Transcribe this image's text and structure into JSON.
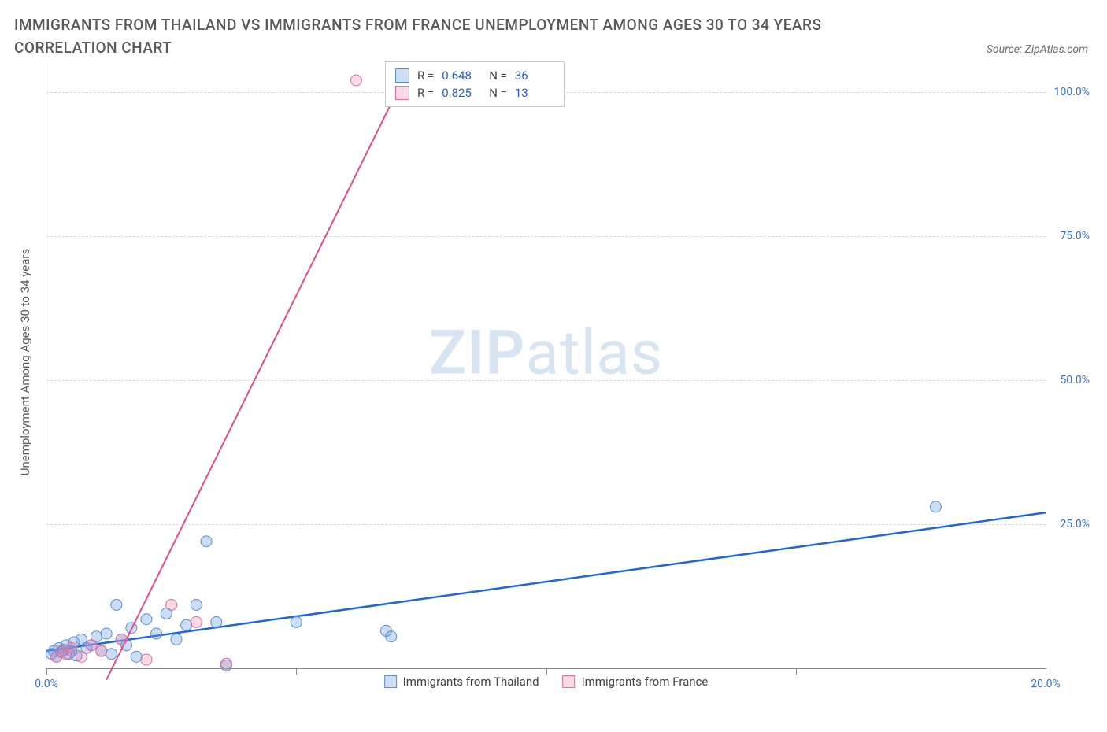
{
  "title": "IMMIGRANTS FROM THAILAND VS IMMIGRANTS FROM FRANCE UNEMPLOYMENT AMONG AGES 30 TO 34 YEARS CORRELATION CHART",
  "source_label": "Source: ZipAtlas.com",
  "y_axis_label": "Unemployment Among Ages 30 to 34 years",
  "watermark": {
    "bold": "ZIP",
    "rest": "atlas"
  },
  "chart": {
    "type": "scatter-with-regression",
    "background_color": "#ffffff",
    "grid_color": "#d8d8d8",
    "axis_color": "#888888",
    "text_color": "#5a5a5a",
    "tick_label_color": "#3a6fd8",
    "xlim": [
      0,
      20
    ],
    "ylim": [
      0,
      105
    ],
    "x_ticks": [
      0,
      5,
      10,
      15,
      20
    ],
    "x_tick_labels": [
      "0.0%",
      "",
      "",
      "",
      "20.0%"
    ],
    "y_ticks": [
      25,
      50,
      75,
      100
    ],
    "y_tick_labels": [
      "25.0%",
      "50.0%",
      "75.0%",
      "100.0%"
    ],
    "series": [
      {
        "name": "Immigrants from Thailand",
        "color_fill": "rgba(110,160,230,0.35)",
        "color_stroke": "#5a8fd6",
        "line_color": "#1e66e0",
        "line_width": 2.5,
        "marker_radius": 7,
        "R": "0.648",
        "N": "36",
        "trend": {
          "x1": 0,
          "y1": 3,
          "x2": 20,
          "y2": 27
        },
        "points": [
          [
            0.1,
            2.5
          ],
          [
            0.15,
            3.0
          ],
          [
            0.2,
            2.0
          ],
          [
            0.25,
            3.5
          ],
          [
            0.3,
            2.8
          ],
          [
            0.35,
            3.2
          ],
          [
            0.4,
            4.0
          ],
          [
            0.45,
            2.5
          ],
          [
            0.5,
            3.0
          ],
          [
            0.55,
            4.5
          ],
          [
            0.6,
            2.2
          ],
          [
            0.7,
            5.0
          ],
          [
            0.8,
            3.5
          ],
          [
            0.9,
            4.0
          ],
          [
            1.0,
            5.5
          ],
          [
            1.1,
            3.0
          ],
          [
            1.2,
            6.0
          ],
          [
            1.3,
            2.5
          ],
          [
            1.4,
            11.0
          ],
          [
            1.5,
            5.0
          ],
          [
            1.6,
            4.0
          ],
          [
            1.7,
            7.0
          ],
          [
            1.8,
            2.0
          ],
          [
            2.0,
            8.5
          ],
          [
            2.2,
            6.0
          ],
          [
            2.4,
            9.5
          ],
          [
            2.6,
            5.0
          ],
          [
            2.8,
            7.5
          ],
          [
            3.0,
            11.0
          ],
          [
            3.2,
            22.0
          ],
          [
            3.4,
            8.0
          ],
          [
            3.6,
            0.5
          ],
          [
            5.0,
            8.0
          ],
          [
            6.8,
            6.5
          ],
          [
            6.9,
            5.5
          ],
          [
            17.8,
            28.0
          ]
        ]
      },
      {
        "name": "Immigrants from France",
        "color_fill": "rgba(235,130,170,0.30)",
        "color_stroke": "#e36fa0",
        "line_color": "#e84a8a",
        "line_width": 2,
        "marker_radius": 7,
        "R": "0.825",
        "N": "13",
        "trend": {
          "x1": 1.2,
          "y1": -2,
          "x2": 7.3,
          "y2": 105
        },
        "points": [
          [
            0.2,
            2.0
          ],
          [
            0.3,
            3.0
          ],
          [
            0.4,
            2.5
          ],
          [
            0.5,
            3.5
          ],
          [
            0.7,
            2.0
          ],
          [
            0.9,
            4.0
          ],
          [
            1.1,
            3.0
          ],
          [
            1.5,
            5.0
          ],
          [
            2.0,
            1.5
          ],
          [
            2.5,
            11.0
          ],
          [
            3.0,
            8.0
          ],
          [
            3.6,
            0.8
          ],
          [
            6.2,
            102.0
          ]
        ]
      }
    ]
  },
  "legend_top": {
    "rows": [
      {
        "swatch_fill": "rgba(110,160,230,0.35)",
        "swatch_stroke": "#5a8fd6",
        "R": "0.648",
        "N": "36"
      },
      {
        "swatch_fill": "rgba(235,130,170,0.30)",
        "swatch_stroke": "#e36fa0",
        "R": "0.825",
        "N": "13"
      }
    ],
    "R_prefix": "R =",
    "N_prefix": "N ="
  },
  "legend_bottom": [
    {
      "swatch_fill": "rgba(110,160,230,0.35)",
      "swatch_stroke": "#5a8fd6",
      "label": "Immigrants from Thailand"
    },
    {
      "swatch_fill": "rgba(235,130,170,0.30)",
      "swatch_stroke": "#e36fa0",
      "label": "Immigrants from France"
    }
  ]
}
